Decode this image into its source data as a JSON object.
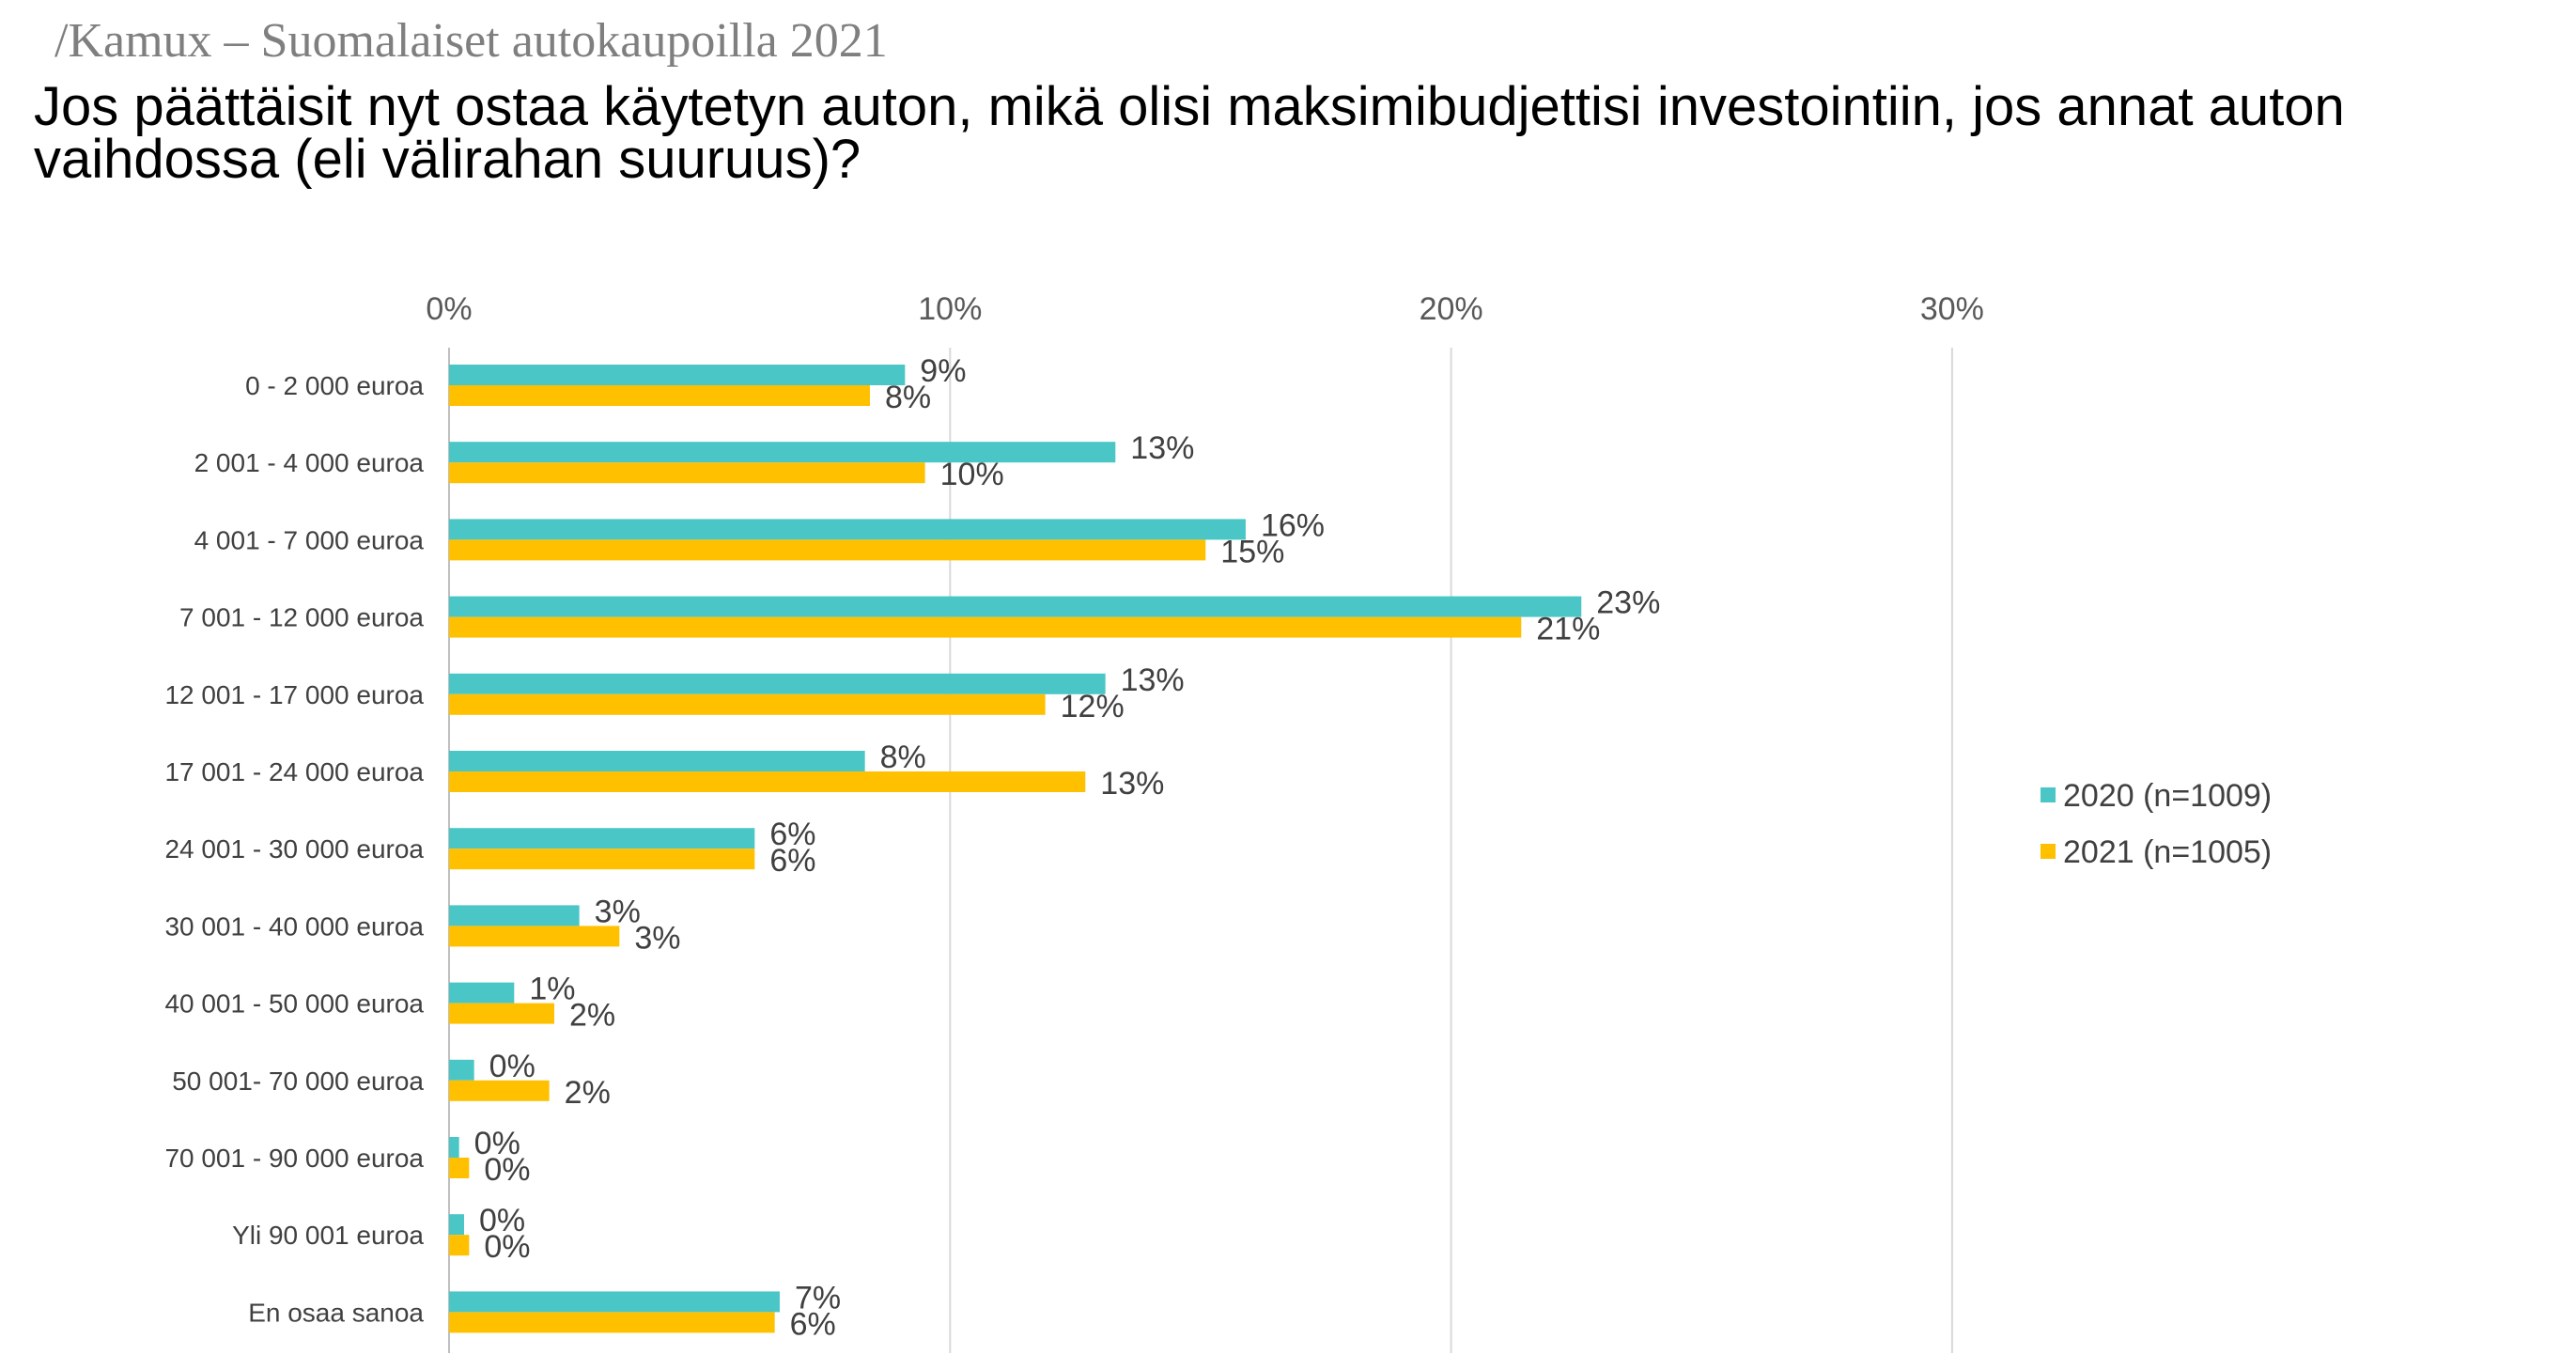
{
  "header": {
    "supertitle": "/Kamux – Suomalaiset autokaupoilla 2021",
    "title": "Jos päättäisit nyt ostaa käytetyn auton, mikä olisi maksimibudjettisi investointiin, jos annat auton vaihdossa (eli välirahan suuruus)?"
  },
  "chart_data": {
    "type": "bar",
    "orientation": "horizontal",
    "title": "Jos päättäisit nyt ostaa käytetyn auton, mikä olisi maksimibudjettisi investointiin, jos annat auton vaihdossa (eli välirahan suuruus)?",
    "xlabel": "",
    "ylabel": "",
    "xlim": [
      0,
      30
    ],
    "x_ticks": [
      0,
      10,
      20,
      30
    ],
    "x_tick_labels": [
      "0%",
      "10%",
      "20%",
      "30%"
    ],
    "grid": true,
    "legend_position": "right",
    "categories": [
      "0 - 2 000 euroa",
      "2 001 - 4 000 euroa",
      "4 001 - 7 000 euroa",
      "7 001 - 12 000 euroa",
      "12 001 - 17 000 euroa",
      "17 001 - 24 000 euroa",
      "24 001 - 30 000 euroa",
      "30 001 - 40 000 euroa",
      "40 001 - 50 000 euroa",
      "50 001- 70 000 euroa",
      "70 001 - 90 000 euroa",
      "Yli 90 001 euroa",
      "En osaa sanoa"
    ],
    "series": [
      {
        "name": "2020 (n=1009)",
        "color": "#4bc6c6",
        "values": [
          9.1,
          13.3,
          15.9,
          22.6,
          13.1,
          8.3,
          6.1,
          2.6,
          1.3,
          0.5,
          0.2,
          0.3,
          6.6
        ],
        "labels": [
          "9%",
          "13%",
          "16%",
          "23%",
          "13%",
          "8%",
          "6%",
          "3%",
          "1%",
          "0%",
          "0%",
          "0%",
          "7%"
        ]
      },
      {
        "name": "2021 (n=1005)",
        "color": "#ffc000",
        "values": [
          8.4,
          9.5,
          15.1,
          21.4,
          11.9,
          12.7,
          6.1,
          3.4,
          2.1,
          2.0,
          0.4,
          0.4,
          6.5
        ],
        "labels": [
          "8%",
          "10%",
          "15%",
          "21%",
          "12%",
          "13%",
          "6%",
          "3%",
          "2%",
          "2%",
          "0%",
          "0%",
          "6%"
        ]
      }
    ]
  }
}
